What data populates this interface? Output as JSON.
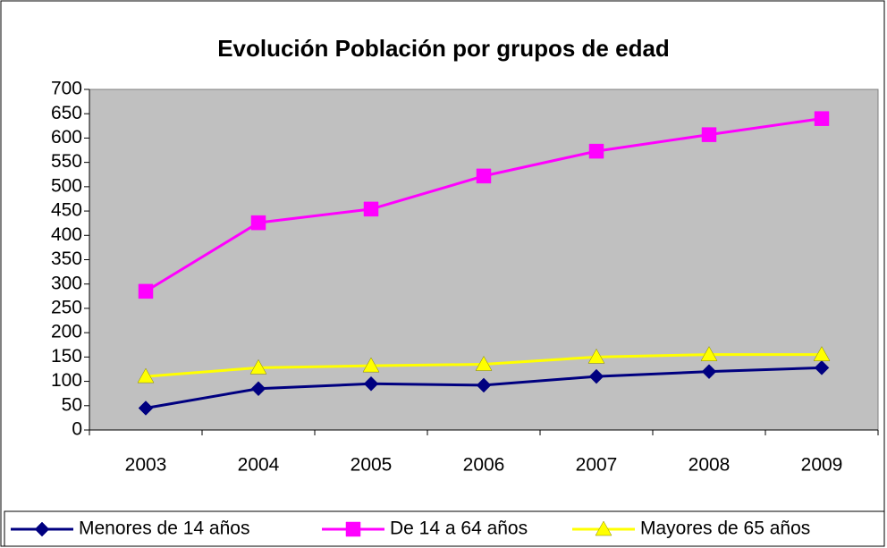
{
  "chart_data": {
    "type": "line",
    "title": "Evolución Población por grupos de edad",
    "categories": [
      "2003",
      "2004",
      "2005",
      "2006",
      "2007",
      "2008",
      "2009"
    ],
    "series": [
      {
        "name": "Menores de 14 años",
        "color": "#000080",
        "marker": "diamond",
        "values": [
          45,
          85,
          95,
          92,
          110,
          120,
          128
        ]
      },
      {
        "name": "De 14 a 64 años",
        "color": "#ff00ff",
        "marker": "square",
        "values": [
          285,
          426,
          454,
          522,
          573,
          607,
          640
        ]
      },
      {
        "name": "Mayores de 65 años",
        "color": "#ffff00",
        "marker": "triangle",
        "values": [
          110,
          128,
          132,
          135,
          150,
          155,
          155
        ]
      }
    ],
    "ylim": [
      0,
      700
    ],
    "yticks": [
      0,
      50,
      100,
      150,
      200,
      250,
      300,
      350,
      400,
      450,
      500,
      550,
      600,
      650,
      700
    ],
    "legend": "bottom",
    "plot_background": "#c0c0c0"
  }
}
